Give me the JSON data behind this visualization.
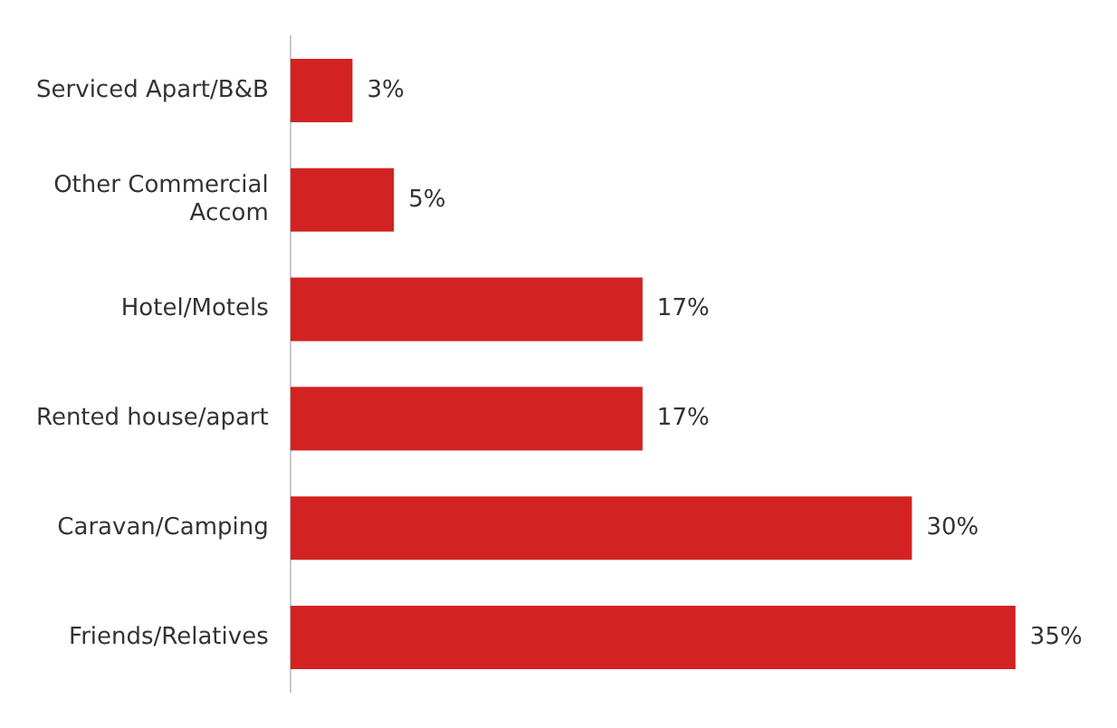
{
  "chart_data": {
    "type": "bar",
    "orientation": "horizontal",
    "categories": [
      "Serviced Apart/B&B",
      "Other Commercial Accom",
      "Hotel/Motels",
      "Rented house/apart",
      "Caravan/Camping",
      "Friends/Relatives"
    ],
    "values": [
      3,
      5,
      17,
      17,
      30,
      35
    ],
    "value_labels": [
      "3%",
      "5%",
      "17%",
      "17%",
      "30%",
      "35%"
    ],
    "color": "#d22222",
    "tick_labels": "y"
  }
}
